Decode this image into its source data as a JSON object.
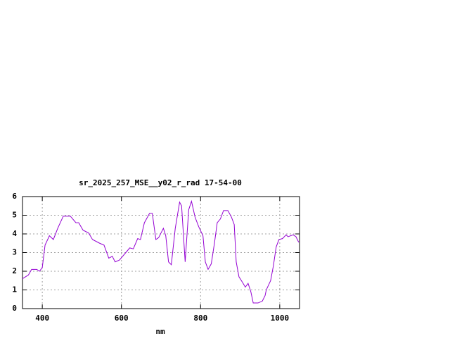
{
  "chart_data": {
    "type": "line",
    "title": "sr_2025_257_MSE__y02_r_rad 17-54-00",
    "xlabel": "nm",
    "x": [
      350,
      365,
      373,
      386,
      393,
      400,
      407,
      418,
      428,
      439,
      453,
      471,
      485,
      492,
      503,
      517,
      527,
      545,
      556,
      568,
      577,
      584,
      595,
      621,
      630,
      641,
      648,
      658,
      671,
      678,
      687,
      694,
      706,
      712,
      719,
      726,
      736,
      747,
      752,
      761,
      770,
      777,
      786,
      795,
      806,
      812,
      819,
      827,
      835,
      842,
      850,
      858,
      869,
      878,
      885,
      890,
      897,
      906,
      913,
      920,
      927,
      933,
      945,
      956,
      963,
      966,
      977,
      984,
      991,
      998,
      1007,
      1016,
      1021,
      1034,
      1041,
      1048
    ],
    "series": [
      {
        "color": "#9400d3",
        "values": [
          1.6,
          1.8,
          2.1,
          2.1,
          2.0,
          2.2,
          3.4,
          3.9,
          3.7,
          4.3,
          4.95,
          4.95,
          4.6,
          4.6,
          4.2,
          4.05,
          3.7,
          3.5,
          3.4,
          2.7,
          2.8,
          2.5,
          2.6,
          3.25,
          3.2,
          3.75,
          3.7,
          4.6,
          5.1,
          5.1,
          3.7,
          3.8,
          4.3,
          3.9,
          2.5,
          2.35,
          4.3,
          5.7,
          5.5,
          2.5,
          5.3,
          5.75,
          4.9,
          4.4,
          3.9,
          2.5,
          2.1,
          2.4,
          3.5,
          4.6,
          4.8,
          5.25,
          5.25,
          4.9,
          4.5,
          2.5,
          1.7,
          1.4,
          1.15,
          1.35,
          0.9,
          0.3,
          0.3,
          0.4,
          0.7,
          1.0,
          1.5,
          2.3,
          3.3,
          3.7,
          3.75,
          3.95,
          3.85,
          3.95,
          3.85,
          3.55
        ]
      }
    ],
    "xlim": [
      350,
      1050
    ],
    "ylim": [
      0,
      6
    ],
    "xticks": [
      400,
      600,
      800,
      1000
    ],
    "yticks": [
      0,
      1,
      2,
      3,
      4,
      5,
      6
    ],
    "grid": true
  }
}
